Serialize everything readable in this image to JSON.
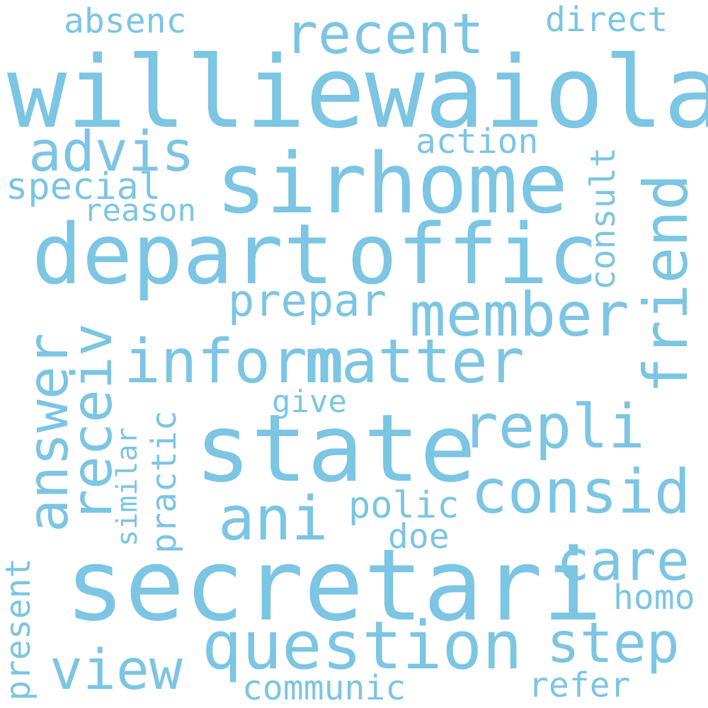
{
  "theme": {
    "word_color": "#7cc5e3",
    "background": "#ffffff"
  },
  "words": {
    "williewaiola": "williewaiola",
    "sirhome": "sirhome",
    "depart": "depart",
    "offic": "offic",
    "secretari": "secretari",
    "state": "state",
    "question": "question",
    "inform": "inform",
    "matter": "matter",
    "member": "member",
    "repli": "repli",
    "consid": "consid",
    "ani": "ani",
    "answer": "answer",
    "receiv": "receiv",
    "friend": "friend",
    "recent": "recent",
    "advis": "advis",
    "step": "step",
    "care": "care",
    "view": "view",
    "prepar": "prepar",
    "special": "special",
    "action": "action",
    "reason": "reason",
    "consult": "consult",
    "absenc": "absenc",
    "direct": "direct",
    "give": "give",
    "polic": "polic",
    "doe": "doe",
    "practic": "practic",
    "similar": "similar",
    "present": "present",
    "homo": "homo",
    "communic": "communic",
    "refer": "refer"
  }
}
